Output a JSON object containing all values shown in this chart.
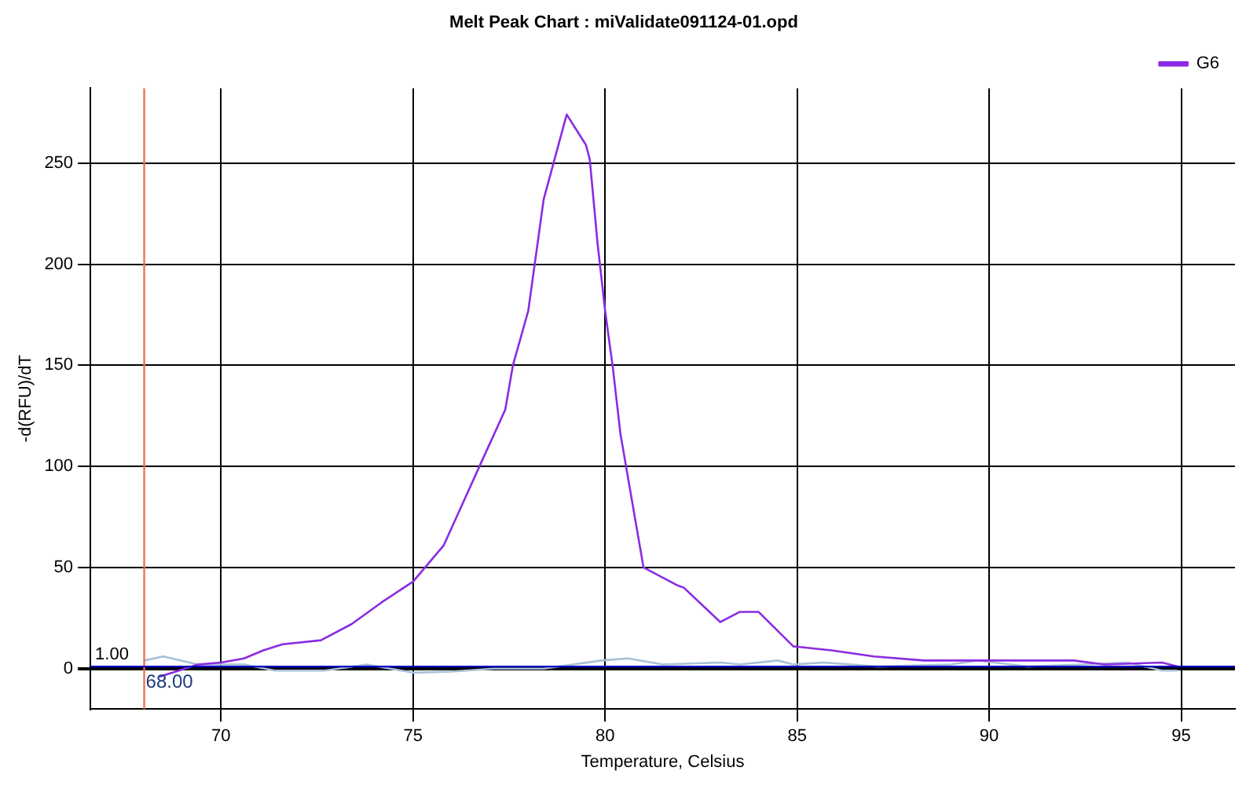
{
  "chart_data": {
    "type": "line",
    "title": "Melt Peak Chart : miValidate091124-01.opd",
    "xlabel": "Temperature, Celsius",
    "ylabel": "-d(RFU)/dT",
    "xlim": [
      66.6,
      96.4
    ],
    "xticks": [
      70,
      75,
      80,
      85,
      90,
      95
    ],
    "ylim": [
      -20,
      287
    ],
    "yticks": [
      0,
      50,
      100,
      150,
      200,
      250
    ],
    "grid": true,
    "legend": "top right",
    "marker": "none",
    "line_style": "solid",
    "series": [
      {
        "name": "G6",
        "color": "#8a2be2",
        "x": [
          68.4,
          69.4,
          70,
          70.6,
          71.1,
          71.6,
          72.6,
          73.4,
          74.2,
          75,
          75.8,
          76.3,
          76.8,
          77.4,
          77.6,
          78,
          78.4,
          79,
          79.5,
          79.6,
          79.8,
          80,
          80.2,
          80.4,
          81,
          81.9,
          82.05,
          83,
          83.5,
          84,
          84.9,
          85.9,
          87,
          88.3,
          90,
          91,
          92.2,
          93,
          94.5,
          94.9
        ],
        "values": [
          -4,
          2,
          3,
          5,
          9,
          12,
          14,
          22,
          33,
          43,
          61,
          82,
          103,
          128,
          150,
          177,
          232,
          274,
          259,
          252,
          211,
          177,
          149,
          116,
          50,
          41,
          40,
          23,
          28,
          28,
          11,
          9,
          6,
          4,
          4,
          4,
          4,
          2,
          3,
          1
        ]
      },
      {
        "color": "#a8bfd8",
        "x": [
          68,
          68.5,
          69.4,
          70.6,
          71.4,
          72.7,
          73.8,
          75,
          76,
          77.1,
          78.4,
          79.9,
          80.6,
          81.5,
          83,
          83.5,
          84.5,
          84.9,
          85.7,
          87.1,
          89,
          89.7,
          91,
          92.4,
          93.6,
          94.5,
          94.9
        ],
        "values": [
          4,
          6,
          2,
          2,
          -1,
          -1,
          2,
          -2,
          -1.5,
          0,
          0,
          4,
          5,
          2,
          3,
          2,
          4,
          2,
          3,
          1,
          2,
          4,
          1,
          2,
          3,
          -1,
          -1
        ]
      }
    ],
    "ref_lines": [
      {
        "axis": "x",
        "value": 68,
        "label": "68.00",
        "color": "#f07050"
      },
      {
        "axis": "y",
        "value": 1,
        "label": "1.00",
        "color": "#0000c0"
      }
    ]
  }
}
